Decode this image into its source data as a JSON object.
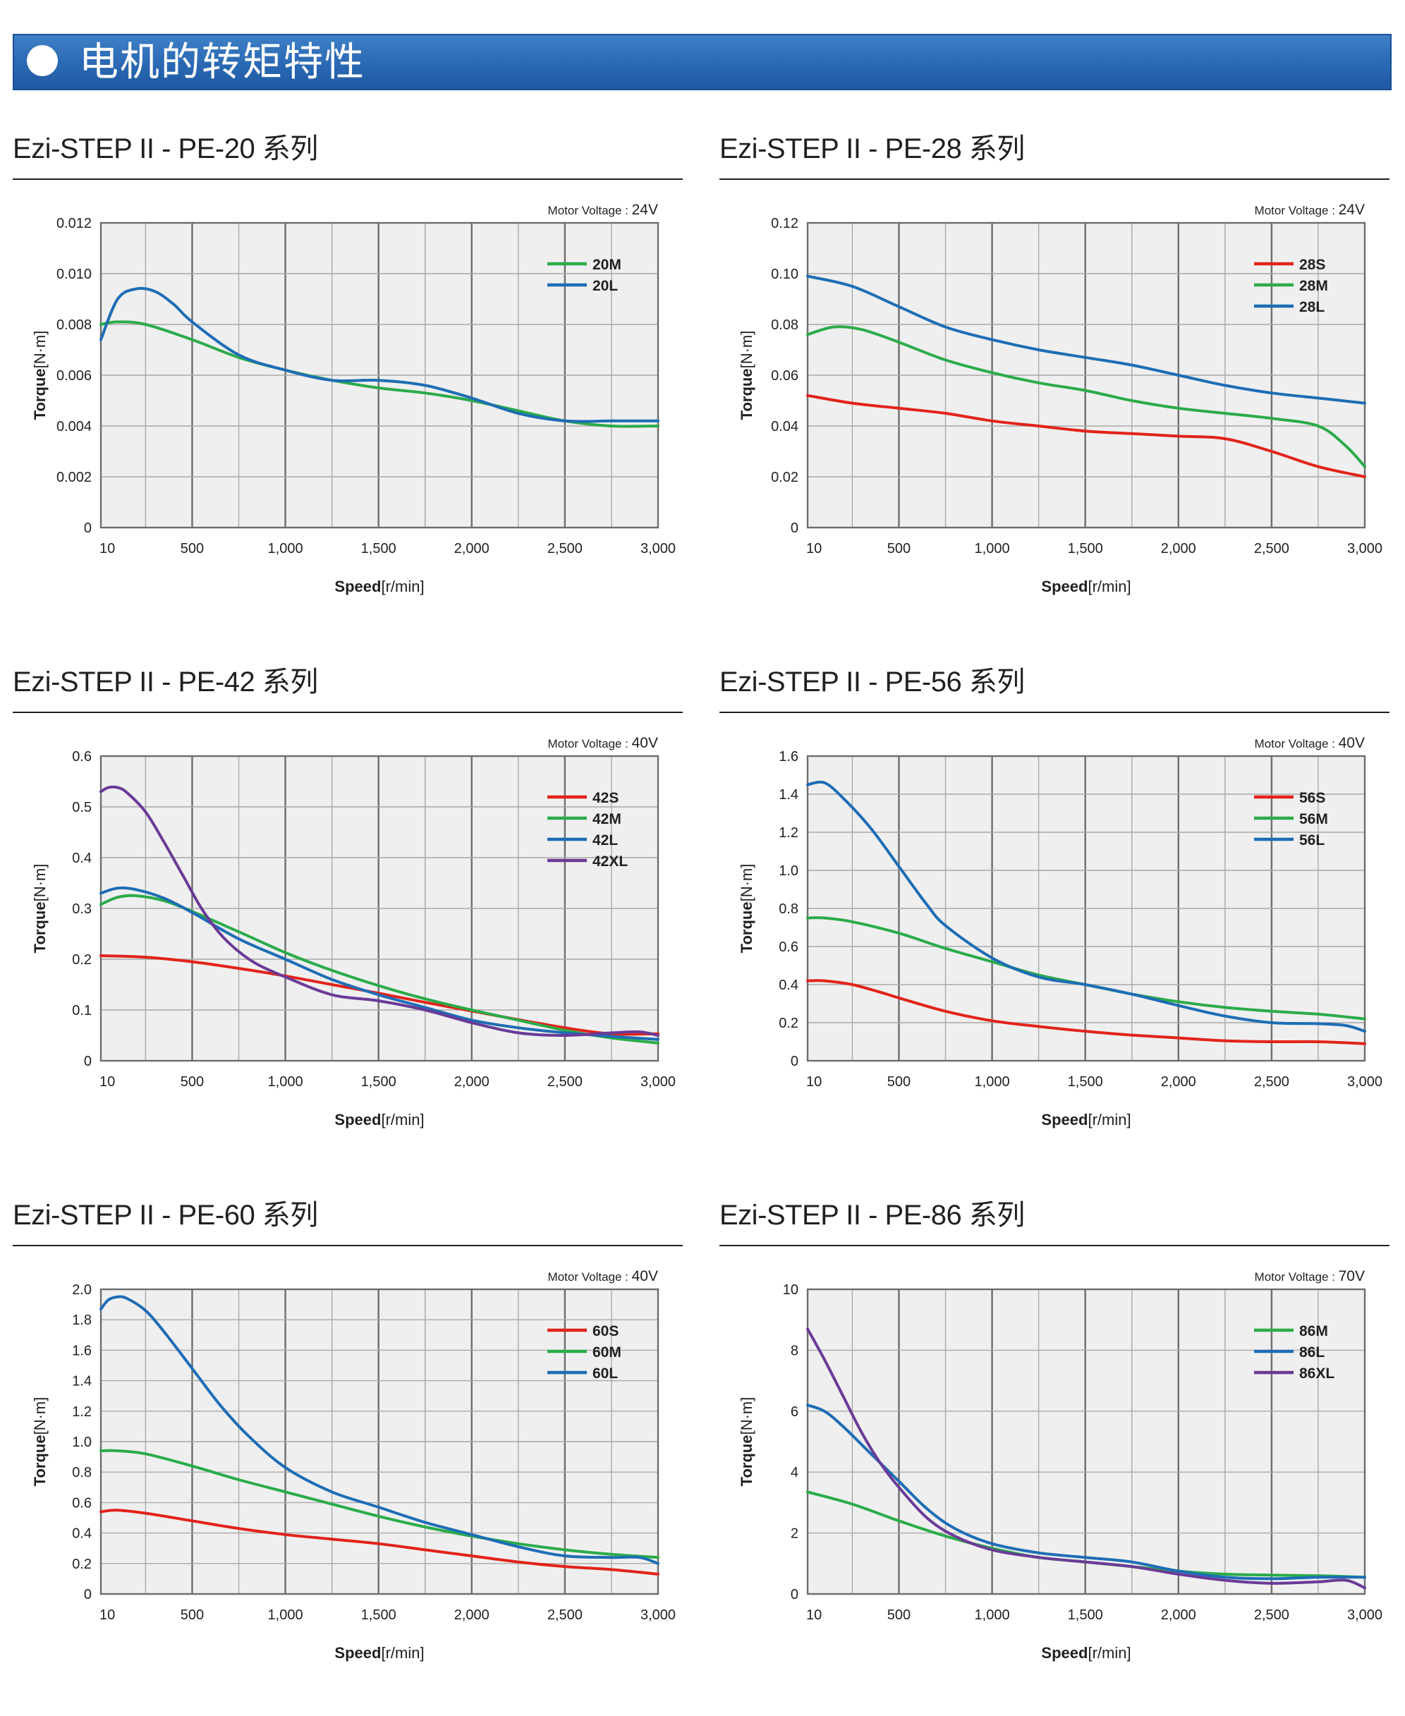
{
  "page_title": "电机的转矩特性",
  "colors": {
    "red": "#e2231a",
    "green": "#2bab4a",
    "blue": "#1e6db5",
    "purple": "#6a3b97"
  },
  "chart_data": [
    {
      "type": "line",
      "title": "Ezi-STEP II - PE-20 系列",
      "voltage_label": "Motor Voltage :",
      "voltage": "24V",
      "xlabel_bold": "Speed",
      "xlabel_unit": "[r/min]",
      "ylabel_bold": "Torque",
      "ylabel_unit": "[N·m]",
      "xlim": [
        10,
        3000
      ],
      "ylim": [
        0,
        0.012
      ],
      "xticks": [
        10,
        500,
        1000,
        1500,
        2000,
        2500,
        3000
      ],
      "xtick_labels": [
        "10",
        "500",
        "1,000",
        "1,500",
        "2,000",
        "2,500",
        "3,000"
      ],
      "yticks": [
        0,
        0.002,
        0.004,
        0.006,
        0.008,
        0.01,
        0.012
      ],
      "ytick_labels": [
        "0",
        "0.002",
        "0.004",
        "0.006",
        "0.008",
        "0.010",
        "0.012"
      ],
      "legend_position": "top-right",
      "series": [
        {
          "name": "20M",
          "color": "#2bab4a",
          "x": [
            10,
            100,
            250,
            500,
            750,
            1000,
            1250,
            1500,
            1750,
            2000,
            2250,
            2500,
            2750,
            3000
          ],
          "y": [
            0.008,
            0.0081,
            0.008,
            0.0074,
            0.0067,
            0.0062,
            0.0058,
            0.0055,
            0.0053,
            0.005,
            0.0046,
            0.0042,
            0.004,
            0.004
          ]
        },
        {
          "name": "20L",
          "color": "#1e6db5",
          "x": [
            10,
            100,
            200,
            300,
            400,
            500,
            750,
            1000,
            1250,
            1500,
            1750,
            2000,
            2250,
            2500,
            2750,
            3000
          ],
          "y": [
            0.0074,
            0.009,
            0.0094,
            0.0093,
            0.0088,
            0.0081,
            0.0068,
            0.0062,
            0.0058,
            0.0058,
            0.0056,
            0.0051,
            0.0045,
            0.0042,
            0.0042,
            0.0042
          ]
        }
      ]
    },
    {
      "type": "line",
      "title": "Ezi-STEP II - PE-28 系列",
      "voltage_label": "Motor Voltage :",
      "voltage": "24V",
      "xlabel_bold": "Speed",
      "xlabel_unit": "[r/min]",
      "ylabel_bold": "Torque",
      "ylabel_unit": "[N·m]",
      "xlim": [
        10,
        3000
      ],
      "ylim": [
        0,
        0.12
      ],
      "xticks": [
        10,
        500,
        1000,
        1500,
        2000,
        2500,
        3000
      ],
      "xtick_labels": [
        "10",
        "500",
        "1,000",
        "1,500",
        "2,000",
        "2,500",
        "3,000"
      ],
      "yticks": [
        0,
        0.02,
        0.04,
        0.06,
        0.08,
        0.1,
        0.12
      ],
      "ytick_labels": [
        "0",
        "0.02",
        "0.04",
        "0.06",
        "0.08",
        "0.10",
        "0.12"
      ],
      "legend_position": "top-right",
      "series": [
        {
          "name": "28S",
          "color": "#e2231a",
          "x": [
            10,
            250,
            500,
            750,
            1000,
            1250,
            1500,
            1750,
            2000,
            2250,
            2500,
            2750,
            3000
          ],
          "y": [
            0.052,
            0.049,
            0.047,
            0.045,
            0.042,
            0.04,
            0.038,
            0.037,
            0.036,
            0.035,
            0.03,
            0.024,
            0.02
          ]
        },
        {
          "name": "28M",
          "color": "#2bab4a",
          "x": [
            10,
            150,
            300,
            500,
            750,
            1000,
            1250,
            1500,
            1750,
            2000,
            2250,
            2500,
            2750,
            2900,
            3000
          ],
          "y": [
            0.076,
            0.079,
            0.078,
            0.073,
            0.066,
            0.061,
            0.057,
            0.054,
            0.05,
            0.047,
            0.045,
            0.043,
            0.04,
            0.032,
            0.024
          ]
        },
        {
          "name": "28L",
          "color": "#1e6db5",
          "x": [
            10,
            250,
            500,
            750,
            1000,
            1250,
            1500,
            1750,
            2000,
            2250,
            2500,
            2750,
            3000
          ],
          "y": [
            0.099,
            0.095,
            0.087,
            0.079,
            0.074,
            0.07,
            0.067,
            0.064,
            0.06,
            0.056,
            0.053,
            0.051,
            0.049
          ]
        }
      ]
    },
    {
      "type": "line",
      "title": "Ezi-STEP II - PE-42 系列",
      "voltage_label": "Motor Voltage :",
      "voltage": "40V",
      "xlabel_bold": "Speed",
      "xlabel_unit": "[r/min]",
      "ylabel_bold": "Torque",
      "ylabel_unit": "[N·m]",
      "xlim": [
        10,
        3000
      ],
      "ylim": [
        0,
        0.6
      ],
      "xticks": [
        10,
        500,
        1000,
        1500,
        2000,
        2500,
        3000
      ],
      "xtick_labels": [
        "10",
        "500",
        "1,000",
        "1,500",
        "2,000",
        "2,500",
        "3,000"
      ],
      "yticks": [
        0,
        0.1,
        0.2,
        0.3,
        0.4,
        0.5,
        0.6
      ],
      "ytick_labels": [
        "0",
        "0.1",
        "0.2",
        "0.3",
        "0.4",
        "0.5",
        "0.6"
      ],
      "legend_position": "top-right",
      "series": [
        {
          "name": "42S",
          "color": "#e2231a",
          "x": [
            10,
            250,
            500,
            750,
            1000,
            1250,
            1500,
            1750,
            2000,
            2250,
            2500,
            2750,
            3000
          ],
          "y": [
            0.207,
            0.204,
            0.195,
            0.182,
            0.167,
            0.15,
            0.133,
            0.115,
            0.098,
            0.081,
            0.065,
            0.053,
            0.053
          ]
        },
        {
          "name": "42M",
          "color": "#2bab4a",
          "x": [
            10,
            100,
            200,
            350,
            500,
            750,
            1000,
            1250,
            1500,
            1750,
            2000,
            2250,
            2500,
            2750,
            3000
          ],
          "y": [
            0.308,
            0.322,
            0.325,
            0.315,
            0.294,
            0.254,
            0.213,
            0.178,
            0.148,
            0.122,
            0.1,
            0.08,
            0.06,
            0.045,
            0.035
          ]
        },
        {
          "name": "42L",
          "color": "#1e6db5",
          "x": [
            10,
            100,
            200,
            350,
            500,
            750,
            1000,
            1250,
            1500,
            1750,
            2000,
            2250,
            2500,
            2750,
            3000
          ],
          "y": [
            0.33,
            0.34,
            0.337,
            0.32,
            0.292,
            0.24,
            0.2,
            0.16,
            0.13,
            0.105,
            0.08,
            0.065,
            0.055,
            0.048,
            0.042
          ]
        },
        {
          "name": "42XL",
          "color": "#6a3b97",
          "x": [
            10,
            50,
            100,
            150,
            250,
            350,
            450,
            550,
            650,
            750,
            850,
            1000,
            1250,
            1500,
            1750,
            2000,
            2250,
            2500,
            2750,
            2900,
            3000
          ],
          "y": [
            0.53,
            0.538,
            0.538,
            0.528,
            0.49,
            0.43,
            0.365,
            0.3,
            0.25,
            0.215,
            0.19,
            0.165,
            0.13,
            0.118,
            0.1,
            0.075,
            0.055,
            0.05,
            0.055,
            0.057,
            0.05
          ]
        }
      ]
    },
    {
      "type": "line",
      "title": "Ezi-STEP II - PE-56 系列",
      "voltage_label": "Motor Voltage :",
      "voltage": "40V",
      "xlabel_bold": "Speed",
      "xlabel_unit": "[r/min]",
      "ylabel_bold": "Torque",
      "ylabel_unit": "[N·m]",
      "xlim": [
        10,
        3000
      ],
      "ylim": [
        0,
        1.6
      ],
      "xticks": [
        10,
        500,
        1000,
        1500,
        2000,
        2500,
        3000
      ],
      "xtick_labels": [
        "10",
        "500",
        "1,000",
        "1,500",
        "2,000",
        "2,500",
        "3,000"
      ],
      "yticks": [
        0,
        0.2,
        0.4,
        0.6,
        0.8,
        1.0,
        1.2,
        1.4,
        1.6
      ],
      "ytick_labels": [
        "0",
        "0.2",
        "0.4",
        "0.6",
        "0.8",
        "1.0",
        "1.2",
        "1.4",
        "1.6"
      ],
      "legend_position": "top-right",
      "series": [
        {
          "name": "56S",
          "color": "#e2231a",
          "x": [
            10,
            100,
            250,
            400,
            500,
            750,
            1000,
            1250,
            1500,
            1750,
            2000,
            2250,
            2500,
            2750,
            3000
          ],
          "y": [
            0.42,
            0.42,
            0.4,
            0.36,
            0.33,
            0.26,
            0.21,
            0.18,
            0.155,
            0.135,
            0.12,
            0.105,
            0.1,
            0.1,
            0.09
          ]
        },
        {
          "name": "56M",
          "color": "#2bab4a",
          "x": [
            10,
            100,
            250,
            500,
            750,
            1000,
            1250,
            1500,
            1750,
            2000,
            2250,
            2500,
            2750,
            3000
          ],
          "y": [
            0.75,
            0.75,
            0.73,
            0.67,
            0.59,
            0.52,
            0.45,
            0.4,
            0.35,
            0.31,
            0.28,
            0.26,
            0.245,
            0.22
          ]
        },
        {
          "name": "56L",
          "color": "#1e6db5",
          "x": [
            10,
            100,
            200,
            350,
            500,
            650,
            750,
            1000,
            1250,
            1500,
            1750,
            2000,
            2250,
            2500,
            2750,
            2900,
            3000
          ],
          "y": [
            1.45,
            1.46,
            1.38,
            1.22,
            1.02,
            0.82,
            0.71,
            0.54,
            0.44,
            0.4,
            0.35,
            0.29,
            0.235,
            0.2,
            0.195,
            0.185,
            0.155
          ]
        }
      ]
    },
    {
      "type": "line",
      "title": "Ezi-STEP II - PE-60 系列",
      "voltage_label": "Motor Voltage :",
      "voltage": "40V",
      "xlabel_bold": "Speed",
      "xlabel_unit": "[r/min]",
      "ylabel_bold": "Torque",
      "ylabel_unit": "[N·m]",
      "xlim": [
        10,
        3000
      ],
      "ylim": [
        0,
        2.0
      ],
      "xticks": [
        10,
        500,
        1000,
        1500,
        2000,
        2500,
        3000
      ],
      "xtick_labels": [
        "10",
        "500",
        "1,000",
        "1,500",
        "2,000",
        "2,500",
        "3,000"
      ],
      "yticks": [
        0,
        0.2,
        0.4,
        0.6,
        0.8,
        1.0,
        1.2,
        1.4,
        1.6,
        1.8,
        2.0
      ],
      "ytick_labels": [
        "0",
        "0.2",
        "0.4",
        "0.6",
        "0.8",
        "1.0",
        "1.2",
        "1.4",
        "1.6",
        "1.8",
        "2.0"
      ],
      "legend_position": "top-right",
      "series": [
        {
          "name": "60S",
          "color": "#e2231a",
          "x": [
            10,
            100,
            250,
            500,
            750,
            1000,
            1250,
            1500,
            1750,
            2000,
            2250,
            2500,
            2750,
            3000
          ],
          "y": [
            0.54,
            0.55,
            0.53,
            0.48,
            0.43,
            0.39,
            0.36,
            0.33,
            0.29,
            0.25,
            0.21,
            0.18,
            0.16,
            0.13
          ]
        },
        {
          "name": "60M",
          "color": "#2bab4a",
          "x": [
            10,
            100,
            250,
            500,
            750,
            1000,
            1250,
            1500,
            1750,
            2000,
            2250,
            2500,
            2750,
            3000
          ],
          "y": [
            0.94,
            0.94,
            0.92,
            0.84,
            0.75,
            0.67,
            0.59,
            0.51,
            0.44,
            0.38,
            0.33,
            0.29,
            0.26,
            0.24
          ]
        },
        {
          "name": "60L",
          "color": "#1e6db5",
          "x": [
            10,
            50,
            100,
            150,
            250,
            350,
            500,
            650,
            800,
            1000,
            1250,
            1500,
            1750,
            2000,
            2250,
            2500,
            2750,
            2900,
            3000
          ],
          "y": [
            1.87,
            1.93,
            1.95,
            1.94,
            1.86,
            1.72,
            1.48,
            1.24,
            1.04,
            0.83,
            0.67,
            0.57,
            0.47,
            0.39,
            0.31,
            0.25,
            0.24,
            0.24,
            0.2
          ]
        }
      ]
    },
    {
      "type": "line",
      "title": "Ezi-STEP II - PE-86 系列",
      "voltage_label": "Motor Voltage :",
      "voltage": "70V",
      "xlabel_bold": "Speed",
      "xlabel_unit": "[r/min]",
      "ylabel_bold": "Torque",
      "ylabel_unit": "[N·m]",
      "xlim": [
        10,
        3000
      ],
      "ylim": [
        0,
        10
      ],
      "xticks": [
        10,
        500,
        1000,
        1500,
        2000,
        2500,
        3000
      ],
      "xtick_labels": [
        "10",
        "500",
        "1,000",
        "1,500",
        "2,000",
        "2,500",
        "3,000"
      ],
      "yticks": [
        0,
        2,
        4,
        6,
        8,
        10
      ],
      "ytick_labels": [
        "0",
        "2",
        "4",
        "6",
        "8",
        "10"
      ],
      "legend_position": "top-right",
      "series": [
        {
          "name": "86M",
          "color": "#2bab4a",
          "x": [
            10,
            250,
            500,
            750,
            1000,
            1250,
            1500,
            1750,
            2000,
            2250,
            2500,
            2750,
            3000
          ],
          "y": [
            3.35,
            2.95,
            2.4,
            1.9,
            1.5,
            1.2,
            1.05,
            0.9,
            0.75,
            0.65,
            0.62,
            0.6,
            0.55
          ]
        },
        {
          "name": "86L",
          "color": "#1e6db5",
          "x": [
            10,
            100,
            200,
            350,
            500,
            650,
            800,
            1000,
            1250,
            1500,
            1750,
            2000,
            2250,
            2500,
            2750,
            3000
          ],
          "y": [
            6.2,
            6.0,
            5.5,
            4.6,
            3.7,
            2.8,
            2.15,
            1.65,
            1.35,
            1.2,
            1.05,
            0.75,
            0.55,
            0.5,
            0.55,
            0.55
          ]
        },
        {
          "name": "86XL",
          "color": "#6a3b97",
          "x": [
            10,
            100,
            200,
            300,
            400,
            500,
            650,
            800,
            1000,
            1250,
            1500,
            1750,
            2000,
            2250,
            2500,
            2750,
            2900,
            3000
          ],
          "y": [
            8.7,
            7.7,
            6.5,
            5.3,
            4.3,
            3.5,
            2.5,
            1.9,
            1.45,
            1.2,
            1.05,
            0.9,
            0.65,
            0.45,
            0.35,
            0.4,
            0.45,
            0.2
          ]
        }
      ]
    }
  ]
}
